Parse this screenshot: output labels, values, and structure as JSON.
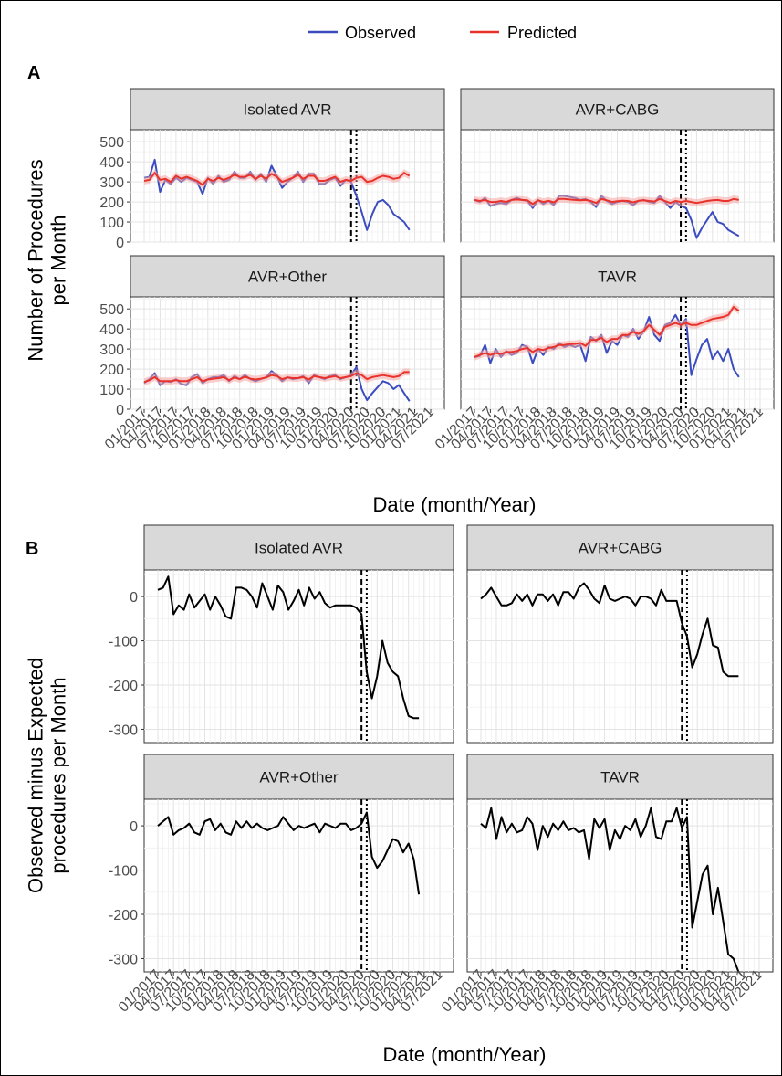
{
  "legend": {
    "items": [
      {
        "label": "Observed",
        "color": "#3b4cc0"
      },
      {
        "label": "Predicted",
        "color": "#e8322b"
      }
    ]
  },
  "chart_data": [
    {
      "tag": "A",
      "type": "line",
      "xlabel": "Date (month/Year)",
      "ylabel": [
        "Number of Procedures",
        "per Month"
      ],
      "x_tick_labels": [
        "01/2017",
        "04/2017",
        "07/2017",
        "10/2017",
        "01/2018",
        "04/2018",
        "07/2018",
        "10/2018",
        "01/2019",
        "04/2019",
        "07/2019",
        "10/2019",
        "01/2020",
        "04/2020",
        "07/2020",
        "10/2020",
        "01/2021",
        "04/2021",
        "07/2021"
      ],
      "y_ticks": [
        0,
        100,
        200,
        300,
        400,
        500
      ],
      "ylim": [
        0,
        560
      ],
      "vlines": [
        {
          "month": 39,
          "style": "dashed"
        },
        {
          "month": 40,
          "style": "dotted"
        }
      ],
      "panels": [
        {
          "strip": "Isolated AVR",
          "series": [
            {
              "name": "Observed",
              "values": [
                320,
                325,
                410,
                250,
                310,
                290,
                320,
                300,
                320,
                310,
                300,
                240,
                320,
                290,
                330,
                300,
                310,
                350,
                320,
                320,
                350,
                310,
                340,
                300,
                380,
                330,
                270,
                300,
                320,
                350,
                300,
                340,
                340,
                290,
                290,
                310,
                320,
                280,
                310,
                300,
                230,
                150,
                60,
                140,
                200,
                210,
                185,
                140,
                120,
                100,
                60
              ]
            },
            {
              "name": "Predicted",
              "values": [
                305,
                310,
                345,
                310,
                315,
                300,
                330,
                315,
                325,
                315,
                305,
                285,
                315,
                305,
                320,
                310,
                320,
                335,
                325,
                325,
                335,
                315,
                330,
                315,
                340,
                325,
                300,
                310,
                320,
                335,
                315,
                330,
                330,
                305,
                305,
                315,
                325,
                300,
                310,
                305,
                320,
                325,
                300,
                305,
                320,
                330,
                325,
                315,
                320,
                345,
                330
              ]
            }
          ]
        },
        {
          "strip": "AVR+CABG",
          "series": [
            {
              "name": "Observed",
              "values": [
                210,
                200,
                220,
                180,
                190,
                195,
                190,
                210,
                220,
                210,
                205,
                170,
                210,
                190,
                205,
                185,
                230,
                230,
                225,
                220,
                210,
                215,
                200,
                175,
                230,
                205,
                190,
                200,
                205,
                200,
                185,
                205,
                210,
                200,
                195,
                230,
                200,
                170,
                200,
                180,
                170,
                110,
                20,
                70,
                110,
                150,
                100,
                90,
                60,
                45,
                30
              ]
            },
            {
              "name": "Predicted",
              "values": [
                210,
                205,
                210,
                200,
                200,
                205,
                200,
                210,
                212,
                210,
                208,
                190,
                208,
                200,
                206,
                198,
                215,
                215,
                212,
                210,
                208,
                210,
                205,
                195,
                215,
                208,
                200,
                204,
                206,
                205,
                198,
                206,
                208,
                205,
                202,
                215,
                205,
                195,
                205,
                200,
                205,
                200,
                195,
                200,
                205,
                208,
                210,
                205,
                205,
                215,
                210
              ]
            }
          ]
        },
        {
          "strip": "AVR+Other",
          "series": [
            {
              "name": "Observed",
              "values": [
                130,
                150,
                180,
                120,
                140,
                135,
                150,
                125,
                120,
                160,
                175,
                130,
                150,
                160,
                160,
                170,
                140,
                165,
                150,
                170,
                150,
                140,
                150,
                160,
                190,
                170,
                140,
                160,
                150,
                155,
                165,
                130,
                170,
                160,
                150,
                165,
                170,
                150,
                160,
                170,
                210,
                100,
                45,
                80,
                110,
                140,
                130,
                100,
                120,
                80,
                40
              ]
            },
            {
              "name": "Predicted",
              "values": [
                135,
                145,
                160,
                140,
                140,
                140,
                145,
                140,
                140,
                150,
                160,
                140,
                148,
                152,
                155,
                160,
                145,
                158,
                150,
                162,
                152,
                148,
                152,
                158,
                170,
                165,
                150,
                158,
                155,
                155,
                160,
                148,
                165,
                160,
                155,
                160,
                165,
                155,
                160,
                165,
                180,
                170,
                150,
                160,
                165,
                170,
                165,
                160,
                165,
                185,
                185
              ]
            }
          ]
        },
        {
          "strip": "TAVR",
          "series": [
            {
              "name": "Observed",
              "values": [
                260,
                265,
                320,
                230,
                300,
                260,
                290,
                270,
                280,
                320,
                310,
                230,
                300,
                270,
                310,
                300,
                330,
                310,
                320,
                310,
                320,
                240,
                360,
                340,
                370,
                280,
                340,
                320,
                370,
                360,
                400,
                350,
                390,
                460,
                370,
                340,
                420,
                430,
                470,
                420,
                450,
                170,
                250,
                320,
                350,
                250,
                290,
                240,
                300,
                200,
                160
              ]
            },
            {
              "name": "Predicted",
              "values": [
                260,
                270,
                280,
                270,
                280,
                275,
                285,
                285,
                290,
                300,
                305,
                285,
                300,
                295,
                305,
                310,
                320,
                320,
                325,
                325,
                330,
                315,
                345,
                345,
                355,
                335,
                350,
                350,
                370,
                370,
                385,
                375,
                390,
                420,
                395,
                370,
                410,
                420,
                430,
                420,
                430,
                420,
                420,
                430,
                440,
                450,
                455,
                460,
                470,
                510,
                490
              ]
            }
          ]
        }
      ]
    },
    {
      "tag": "B",
      "type": "line",
      "xlabel": "Date (month/Year)",
      "ylabel": [
        "Observed minus Expected",
        "procedures per Month"
      ],
      "x_tick_labels": [
        "01/2017",
        "04/2017",
        "07/2017",
        "10/2017",
        "01/2018",
        "04/2018",
        "07/2018",
        "10/2018",
        "01/2019",
        "04/2019",
        "07/2019",
        "10/2019",
        "01/2020",
        "04/2020",
        "07/2020",
        "10/2020",
        "01/2021",
        "04/2021",
        "07/2021"
      ],
      "y_ticks": [
        0,
        -100,
        -200,
        -300
      ],
      "ylim": [
        -330,
        60
      ],
      "vlines": [
        {
          "month": 39,
          "style": "dashed"
        },
        {
          "month": 40,
          "style": "dotted"
        }
      ],
      "panels": [
        {
          "strip": "Isolated AVR",
          "series": [
            {
              "name": "",
              "values": [
                15,
                20,
                45,
                -40,
                -20,
                -30,
                5,
                -25,
                -10,
                5,
                -30,
                0,
                -20,
                -45,
                -50,
                20,
                20,
                15,
                0,
                -25,
                30,
                0,
                -30,
                25,
                10,
                -30,
                -10,
                15,
                -20,
                20,
                -5,
                10,
                -15,
                -25,
                -20,
                -20,
                -20,
                -20,
                -25,
                -40,
                -170,
                -230,
                -180,
                -100,
                -150,
                -170,
                -180,
                -230,
                -270,
                -275,
                -275
              ]
            }
          ]
        },
        {
          "strip": "AVR+CABG",
          "series": [
            {
              "name": "",
              "values": [
                -5,
                5,
                20,
                0,
                -20,
                -20,
                -15,
                5,
                -10,
                5,
                -20,
                5,
                5,
                -10,
                5,
                -20,
                10,
                10,
                -5,
                20,
                30,
                15,
                -5,
                -15,
                25,
                -5,
                -10,
                -5,
                0,
                -5,
                -20,
                0,
                0,
                -5,
                -20,
                15,
                -10,
                -10,
                -10,
                -60,
                -90,
                -160,
                -130,
                -85,
                -50,
                -110,
                -115,
                -170,
                -180,
                -180,
                -180
              ]
            }
          ]
        },
        {
          "strip": "AVR+Other",
          "series": [
            {
              "name": "",
              "values": [
                0,
                10,
                20,
                -20,
                -10,
                -5,
                5,
                -15,
                -20,
                10,
                15,
                -10,
                5,
                -15,
                -20,
                10,
                -5,
                10,
                -5,
                5,
                -5,
                -10,
                -5,
                0,
                20,
                5,
                -10,
                0,
                -5,
                0,
                5,
                -15,
                5,
                0,
                -5,
                5,
                5,
                -10,
                -5,
                5,
                30,
                -70,
                -95,
                -80,
                -55,
                -30,
                -35,
                -60,
                -40,
                -75,
                -155
              ]
            }
          ]
        },
        {
          "strip": "TAVR",
          "series": [
            {
              "name": "",
              "values": [
                5,
                -5,
                40,
                -30,
                20,
                -15,
                5,
                -15,
                -10,
                20,
                5,
                -55,
                0,
                -25,
                5,
                -10,
                10,
                -10,
                -5,
                -15,
                -10,
                -75,
                15,
                -5,
                15,
                -55,
                -10,
                -30,
                0,
                -10,
                15,
                -25,
                0,
                40,
                -25,
                -30,
                10,
                10,
                40,
                -5,
                20,
                -230,
                -170,
                -110,
                -90,
                -200,
                -140,
                -215,
                -290,
                -300,
                -330
              ]
            }
          ]
        }
      ]
    }
  ]
}
